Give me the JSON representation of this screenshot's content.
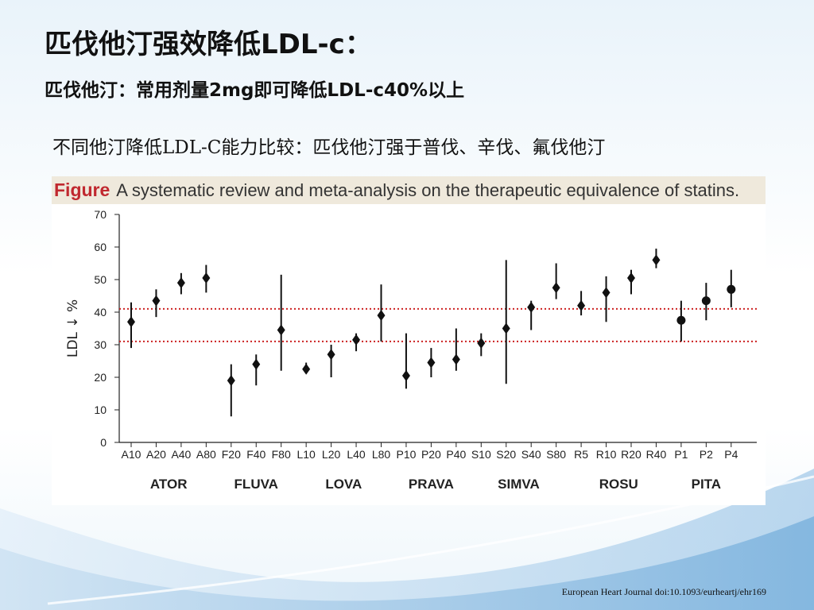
{
  "slide": {
    "title": "匹伐他汀强效降低LDL-c：",
    "subtitle": "匹伐他汀：常用剂量2mg即可降低LDL-c40%以上",
    "comparison": "不同他汀降低LDL-C能力比较：匹伐他汀强于普伐、辛伐、氟伐他汀",
    "citation": "European Heart Journal doi:10.1093/eurheartj/ehr169"
  },
  "figure": {
    "label": "Figure",
    "caption": "A systematic review and meta-analysis on the therapeutic equivalence of statins."
  },
  "colors": {
    "reference_line": "#cc2222",
    "marker": "#111111",
    "figure_label": "#c0282f",
    "header_band": "#efe9dc",
    "background_wave": "#9cc6e6"
  },
  "chart_data": {
    "type": "scatter",
    "ylabel": "LDL ↓ %",
    "ylim": [
      0,
      70
    ],
    "yticks": [
      0,
      10,
      20,
      30,
      40,
      50,
      60,
      70
    ],
    "reference_lines": [
      41,
      31
    ],
    "categories": [
      "A10",
      "A20",
      "A40",
      "A80",
      "F20",
      "F40",
      "F80",
      "L10",
      "L20",
      "L40",
      "L80",
      "P10",
      "P20",
      "P40",
      "S10",
      "S20",
      "S40",
      "S80",
      "R5",
      "R10",
      "R20",
      "R40",
      "P1",
      "P2",
      "P4"
    ],
    "values": [
      37,
      43.5,
      49,
      50.5,
      19,
      24,
      34.5,
      22.5,
      27,
      31.5,
      39,
      20.5,
      24.5,
      25.5,
      30.5,
      35,
      41.5,
      47.5,
      42,
      46,
      50.5,
      56,
      37.5,
      43.5,
      47
    ],
    "ci_low": [
      29,
      38.5,
      45.5,
      46,
      8,
      17.5,
      22,
      21.5,
      20,
      28,
      31,
      16.5,
      20,
      22,
      26.5,
      18,
      34.5,
      44,
      39,
      37,
      45.5,
      53.5,
      31,
      37.5,
      41.5
    ],
    "ci_high": [
      43,
      47,
      52,
      54.5,
      24,
      27,
      51.5,
      24.5,
      30,
      33.5,
      48.5,
      33.5,
      29,
      35,
      33.5,
      56,
      43.5,
      55,
      46.5,
      51,
      53,
      59.5,
      43.5,
      49,
      53
    ],
    "markers": [
      "diamond",
      "diamond",
      "diamond",
      "diamond",
      "diamond",
      "diamond",
      "diamond",
      "diamond",
      "diamond",
      "diamond",
      "diamond",
      "diamond",
      "diamond",
      "diamond",
      "diamond",
      "diamond",
      "diamond",
      "diamond",
      "diamond",
      "diamond",
      "diamond",
      "diamond",
      "circle",
      "circle",
      "circle"
    ],
    "groups": [
      {
        "name": "ATOR",
        "from": 0,
        "to": 3
      },
      {
        "name": "FLUVA",
        "from": 4,
        "to": 6
      },
      {
        "name": "LOVA",
        "from": 7,
        "to": 10
      },
      {
        "name": "PRAVA",
        "from": 11,
        "to": 13
      },
      {
        "name": "SIMVA",
        "from": 14,
        "to": 17
      },
      {
        "name": "ROSU",
        "from": 18,
        "to": 21
      },
      {
        "name": "PITA",
        "from": 22,
        "to": 24
      }
    ]
  }
}
